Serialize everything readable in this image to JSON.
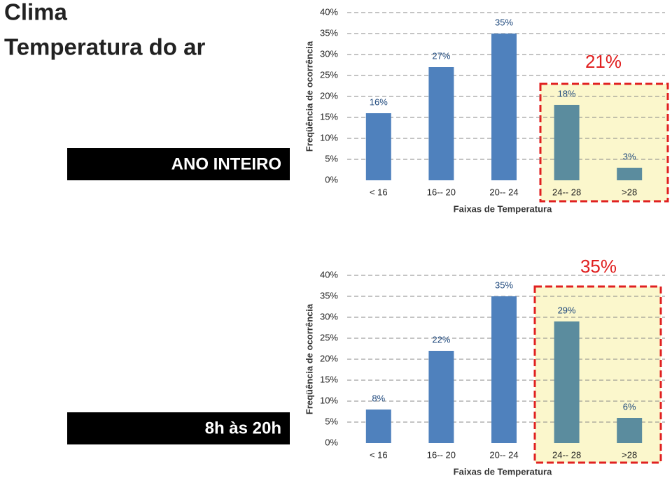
{
  "header": {
    "title": "Clima",
    "subtitle": "Temperatura do ar"
  },
  "chart_data": [
    {
      "type": "bar",
      "label": "ANO INTEIRO",
      "categories": [
        "< 16",
        "16-- 20",
        "20-- 24",
        "24-- 28",
        ">28"
      ],
      "values": [
        16,
        27,
        35,
        18,
        3
      ],
      "value_labels": [
        "16%",
        "27%",
        "35%",
        "18%",
        "3%"
      ],
      "colors": [
        "#4f81bd",
        "#4f81bd",
        "#4f81bd",
        "#5b8c9e",
        "#5b8c9e"
      ],
      "ylim": [
        0,
        40
      ],
      "yticks": [
        {
          "value": 0,
          "label": "0%"
        },
        {
          "value": 5,
          "label": "5%"
        },
        {
          "value": 10,
          "label": "10%"
        },
        {
          "value": 15,
          "label": "15%"
        },
        {
          "value": 20,
          "label": "20%"
        },
        {
          "value": 25,
          "label": "25%"
        },
        {
          "value": 30,
          "label": "30%"
        },
        {
          "value": 35,
          "label": "35%"
        },
        {
          "value": 40,
          "label": "40%"
        }
      ],
      "grid": true,
      "xlabel": "Faixas de Temperatura",
      "ylabel": "Freqüência de ocorrência",
      "annotation": "21%"
    },
    {
      "type": "bar",
      "label": "8h às 20h",
      "categories": [
        "< 16",
        "16-- 20",
        "20-- 24",
        "24-- 28",
        ">28"
      ],
      "values": [
        8,
        22,
        35,
        29,
        6
      ],
      "value_labels": [
        "8%",
        "22%",
        "35%",
        "29%",
        "6%"
      ],
      "colors": [
        "#4f81bd",
        "#4f81bd",
        "#4f81bd",
        "#5b8c9e",
        "#5b8c9e"
      ],
      "ylim": [
        0,
        40
      ],
      "yticks": [
        {
          "value": 0,
          "label": "0%"
        },
        {
          "value": 5,
          "label": "5%"
        },
        {
          "value": 10,
          "label": "10%"
        },
        {
          "value": 15,
          "label": "15%"
        },
        {
          "value": 20,
          "label": "20%"
        },
        {
          "value": 25,
          "label": "25%"
        },
        {
          "value": 30,
          "label": "30%"
        },
        {
          "value": 35,
          "label": "35%"
        },
        {
          "value": 40,
          "label": "40%"
        }
      ],
      "grid": true,
      "xlabel": "Faixas de Temperatura",
      "ylabel": "Freqüência de ocorrência",
      "annotation": "35%"
    }
  ]
}
